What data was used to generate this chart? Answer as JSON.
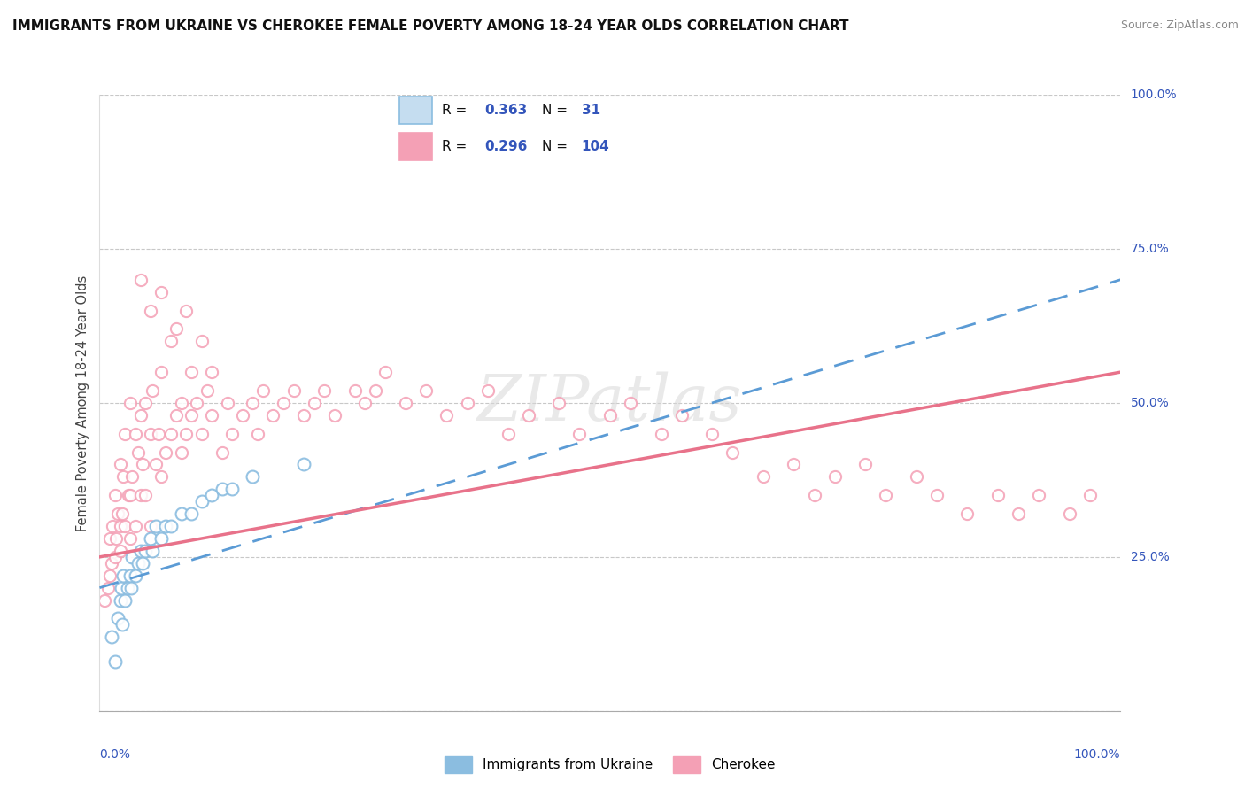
{
  "title": "IMMIGRANTS FROM UKRAINE VS CHEROKEE FEMALE POVERTY AMONG 18-24 YEAR OLDS CORRELATION CHART",
  "source": "Source: ZipAtlas.com",
  "ylabel": "Female Poverty Among 18-24 Year Olds",
  "xlim": [
    0,
    100
  ],
  "ylim": [
    0,
    100
  ],
  "ytick_values": [
    0,
    25,
    50,
    75,
    100
  ],
  "ytick_labels": [
    "",
    "25.0%",
    "50.0%",
    "75.0%",
    "100.0%"
  ],
  "color_ukraine": "#8bbde0",
  "color_cherokee": "#f4a0b5",
  "trend_ukraine_color": "#5b9bd5",
  "trend_cherokee_color": "#e8728a",
  "watermark": "ZIPatlas",
  "title_fontsize": 11,
  "source_fontsize": 9,
  "legend_r1": "0.363",
  "legend_n1": "31",
  "legend_r2": "0.296",
  "legend_n2": "104",
  "ukraine_x": [
    1.2,
    1.5,
    1.8,
    2.0,
    2.1,
    2.2,
    2.3,
    2.5,
    2.7,
    3.0,
    3.1,
    3.2,
    3.5,
    3.8,
    4.0,
    4.2,
    4.5,
    5.0,
    5.2,
    5.5,
    6.0,
    6.5,
    7.0,
    8.0,
    9.0,
    10.0,
    11.0,
    12.0,
    13.0,
    15.0,
    20.0
  ],
  "ukraine_y": [
    12,
    8,
    15,
    18,
    20,
    14,
    22,
    18,
    20,
    22,
    20,
    25,
    22,
    24,
    26,
    24,
    26,
    28,
    26,
    30,
    28,
    30,
    30,
    32,
    32,
    34,
    35,
    36,
    36,
    38,
    40
  ],
  "cherokee_x": [
    0.5,
    0.8,
    1.0,
    1.0,
    1.2,
    1.3,
    1.5,
    1.5,
    1.6,
    1.8,
    2.0,
    2.0,
    2.0,
    2.2,
    2.3,
    2.5,
    2.5,
    2.8,
    3.0,
    3.0,
    3.0,
    3.2,
    3.5,
    3.5,
    3.8,
    4.0,
    4.0,
    4.2,
    4.5,
    4.5,
    5.0,
    5.0,
    5.2,
    5.5,
    5.8,
    6.0,
    6.0,
    6.5,
    7.0,
    7.0,
    7.5,
    8.0,
    8.0,
    8.5,
    9.0,
    9.0,
    9.5,
    10.0,
    10.5,
    11.0,
    11.0,
    12.0,
    12.5,
    13.0,
    14.0,
    15.0,
    15.5,
    16.0,
    17.0,
    18.0,
    19.0,
    20.0,
    21.0,
    22.0,
    23.0,
    25.0,
    26.0,
    27.0,
    28.0,
    30.0,
    32.0,
    34.0,
    36.0,
    38.0,
    40.0,
    42.0,
    45.0,
    47.0,
    50.0,
    52.0,
    55.0,
    57.0,
    60.0,
    62.0,
    65.0,
    68.0,
    70.0,
    72.0,
    75.0,
    77.0,
    80.0,
    82.0,
    85.0,
    88.0,
    90.0,
    92.0,
    95.0,
    97.0,
    4.0,
    5.0,
    6.0,
    7.5,
    8.5,
    10.0
  ],
  "cherokee_y": [
    18,
    20,
    22,
    28,
    24,
    30,
    25,
    35,
    28,
    32,
    26,
    30,
    40,
    32,
    38,
    30,
    45,
    35,
    28,
    35,
    50,
    38,
    30,
    45,
    42,
    35,
    48,
    40,
    35,
    50,
    30,
    45,
    52,
    40,
    45,
    38,
    55,
    42,
    45,
    60,
    48,
    42,
    50,
    45,
    48,
    55,
    50,
    45,
    52,
    48,
    55,
    42,
    50,
    45,
    48,
    50,
    45,
    52,
    48,
    50,
    52,
    48,
    50,
    52,
    48,
    52,
    50,
    52,
    55,
    50,
    52,
    48,
    50,
    52,
    45,
    48,
    50,
    45,
    48,
    50,
    45,
    48,
    45,
    42,
    38,
    40,
    35,
    38,
    40,
    35,
    38,
    35,
    32,
    35,
    32,
    35,
    32,
    35,
    70,
    65,
    68,
    62,
    65,
    60
  ]
}
